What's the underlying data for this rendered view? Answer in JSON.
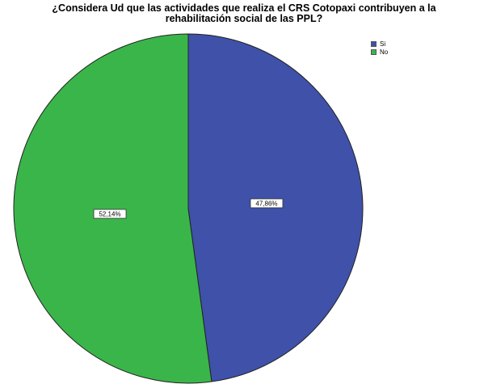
{
  "chart_data": {
    "type": "pie",
    "title_lines": [
      "¿Considera Ud que las actividades que realiza el CRS Cotopaxi contribuyen a la",
      "rehabilitación social de las PPL?"
    ],
    "legend_position": "top-right",
    "slices": [
      {
        "label": "Si",
        "value": 47.86,
        "data_label": "47,86%",
        "color": "#3f51a8"
      },
      {
        "label": "No",
        "value": 52.14,
        "data_label": "52,14%",
        "color": "#3ab54a"
      }
    ]
  }
}
